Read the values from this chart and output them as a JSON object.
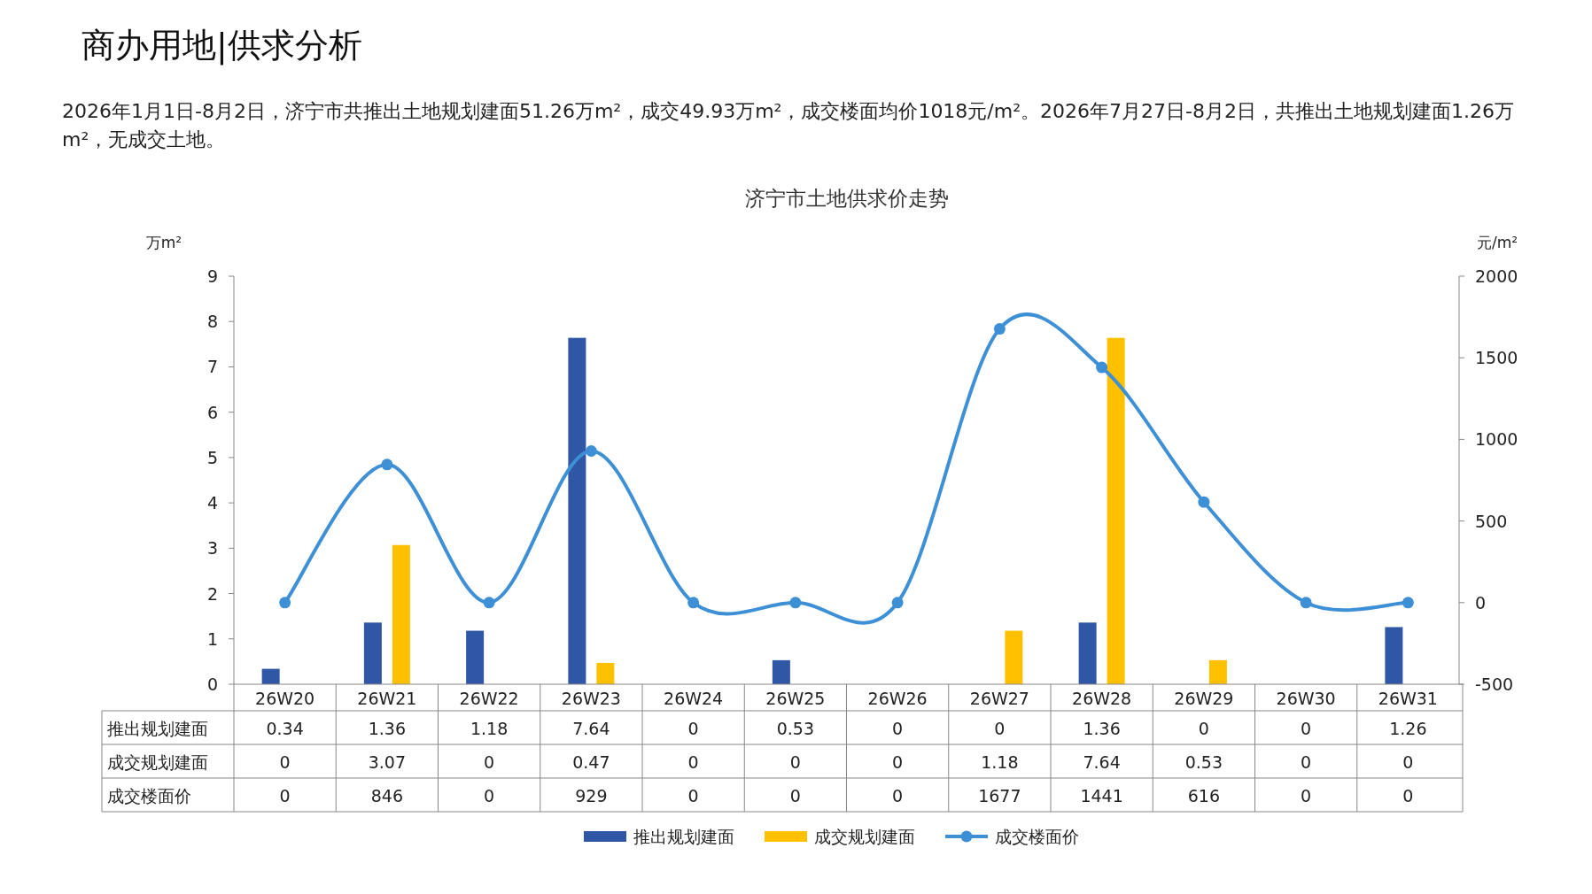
{
  "chart_data": {
    "type": "bar",
    "title": "济宁市土地供求价走势",
    "annotations": [
      "商办用地|供求分析",
      "2026年1月1日-8月2日，济宁市共推出土地规划建面51.26万m²，成交49.93万m²，成交楼面均价1018元/m²。2026年7月27日-8月2日，共推出土地规划建面1.26万m²，无成交土地。"
    ],
    "categories": [
      "26W20",
      "26W21",
      "26W22",
      "26W23",
      "26W24",
      "26W25",
      "26W26",
      "26W27",
      "26W28",
      "26W29",
      "26W30",
      "26W31"
    ],
    "series": [
      {
        "name": "推出规划建面",
        "color": "#2f57a6",
        "values": [
          0.34,
          1.36,
          1.18,
          7.64,
          0,
          0.53,
          0,
          0,
          1.36,
          0,
          0,
          1.26
        ]
      },
      {
        "name": "成交规划建面",
        "color": "#ffc000",
        "values": [
          0,
          3.07,
          0,
          0.47,
          0,
          0,
          0,
          1.18,
          7.64,
          0.53,
          0,
          0
        ]
      },
      {
        "name": "成交楼面价",
        "type": "line",
        "axis": "y2",
        "color": "#3d8fd6",
        "marker": "circle",
        "line_style": "solid",
        "values": [
          0,
          846,
          0,
          929,
          0,
          0,
          0,
          1677,
          1441,
          616,
          0,
          0
        ]
      }
    ],
    "ylabel": "万m²",
    "y2label": "元/m²",
    "ylim": [
      0,
      9
    ],
    "yticks": [
      0,
      1,
      2,
      3,
      4,
      5,
      6,
      7,
      8,
      9
    ],
    "y2lim": [
      -500,
      2000
    ],
    "y2ticks": [
      -500,
      0,
      500,
      1000,
      1500,
      2000
    ],
    "data_labels": true,
    "legend": "bottom"
  }
}
